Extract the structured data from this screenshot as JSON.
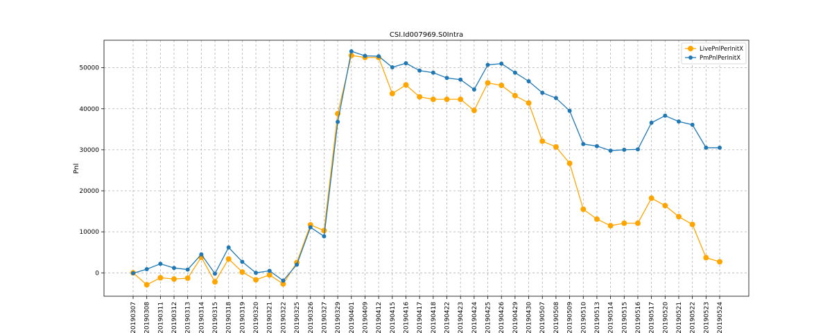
{
  "chart_data": {
    "type": "line",
    "title": "CSI.Id007969.S0Intra",
    "xlabel": "",
    "ylabel": "Pnl",
    "ylim": [
      -5700,
      56700
    ],
    "yticks": [
      0,
      10000,
      20000,
      30000,
      40000,
      50000
    ],
    "grid": true,
    "legend_position": "top-right",
    "categories": [
      "20190307",
      "20190308",
      "20190311",
      "20190312",
      "20190313",
      "20190314",
      "20190315",
      "20190318",
      "20190319",
      "20190320",
      "20190321",
      "20190322",
      "20190325",
      "20190326",
      "20190327",
      "20190329",
      "20190401",
      "20190409",
      "20190412",
      "20190415",
      "20190416",
      "20190417",
      "20190418",
      "20190422",
      "20190423",
      "20190424",
      "20190425",
      "20190426",
      "20190429",
      "20190430",
      "20190507",
      "20190508",
      "20190509",
      "20190510",
      "20190513",
      "20190514",
      "20190515",
      "20190516",
      "20190517",
      "20190520",
      "20190521",
      "20190522",
      "20190523",
      "20190524"
    ],
    "series": [
      {
        "name": "LivePnlPerInitX",
        "color": "#ffa500",
        "values": [
          0,
          -2900,
          -1200,
          -1500,
          -1300,
          3800,
          -2200,
          3400,
          200,
          -1700,
          -500,
          -2700,
          2500,
          11700,
          10300,
          38800,
          53000,
          52500,
          52500,
          43700,
          45800,
          42900,
          42300,
          42300,
          42300,
          39600,
          46300,
          45700,
          43200,
          41400,
          32100,
          30700,
          26700,
          15500,
          13100,
          11500,
          12100,
          12100,
          18200,
          16400,
          13700,
          11800,
          3700,
          2700
        ]
      },
      {
        "name": "PmPnlPerInitX",
        "color": "#1f77b4",
        "values": [
          -100,
          900,
          2200,
          1200,
          800,
          4500,
          -200,
          6200,
          2700,
          0,
          500,
          -1900,
          2000,
          11100,
          8900,
          36800,
          54000,
          52900,
          52800,
          50100,
          51100,
          49300,
          48800,
          47500,
          47100,
          44700,
          50700,
          51000,
          48800,
          46700,
          43900,
          42600,
          39500,
          31400,
          30900,
          29800,
          30000,
          30100,
          36600,
          38300,
          36900,
          36100,
          30500,
          30500
        ]
      }
    ]
  }
}
